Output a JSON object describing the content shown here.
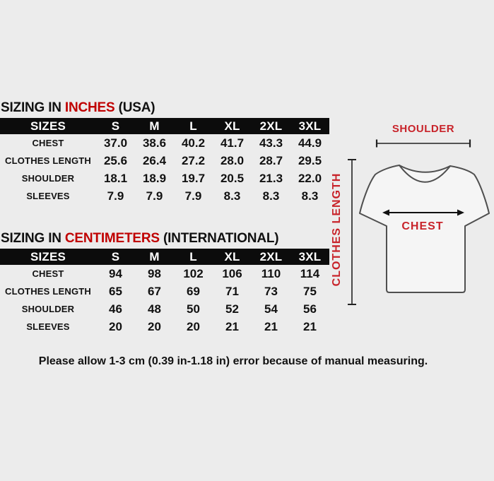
{
  "tables": [
    {
      "title": {
        "prefix": "SIZING IN ",
        "accent": "INCHES",
        "suffix": " (USA)"
      },
      "columns": [
        "SIZES",
        "S",
        "M",
        "L",
        "XL",
        "2XL",
        "3XL"
      ],
      "rows": [
        {
          "label": "CHEST",
          "values": [
            "37.0",
            "38.6",
            "40.2",
            "41.7",
            "43.3",
            "44.9"
          ]
        },
        {
          "label": "CLOTHES LENGTH",
          "values": [
            "25.6",
            "26.4",
            "27.2",
            "28.0",
            "28.7",
            "29.5"
          ]
        },
        {
          "label": "SHOULDER",
          "values": [
            "18.1",
            "18.9",
            "19.7",
            "20.5",
            "21.3",
            "22.0"
          ]
        },
        {
          "label": "SLEEVES",
          "values": [
            "7.9",
            "7.9",
            "7.9",
            "8.3",
            "8.3",
            "8.3"
          ]
        }
      ]
    },
    {
      "title": {
        "prefix": "SIZING IN ",
        "accent": "CENTIMETERS",
        "suffix": " (INTERNATIONAL)"
      },
      "columns": [
        "SIZES",
        "S",
        "M",
        "L",
        "XL",
        "2XL",
        "3XL"
      ],
      "rows": [
        {
          "label": "CHEST",
          "values": [
            "94",
            "98",
            "102",
            "106",
            "110",
            "114"
          ]
        },
        {
          "label": "CLOTHES LENGTH",
          "values": [
            "65",
            "67",
            "69",
            "71",
            "73",
            "75"
          ]
        },
        {
          "label": "SHOULDER",
          "values": [
            "46",
            "48",
            "50",
            "52",
            "54",
            "56"
          ]
        },
        {
          "label": "SLEEVES",
          "values": [
            "20",
            "20",
            "20",
            "21",
            "21",
            "21"
          ]
        }
      ]
    }
  ],
  "diagram": {
    "shoulder_label": "SHOULDER",
    "chest_label": "CHEST",
    "length_label": "CLOTHES LENGTH"
  },
  "footer": {
    "note": "Please allow 1-3 cm (0.39 in-1.18 in) error because of manual measuring."
  },
  "colors": {
    "background": "#ececec",
    "header_bg": "#0c0c0c",
    "header_text": "#ffffff",
    "body_text": "#111111",
    "title_accent_red": "#c00000",
    "diagram_label_red": "#c8232a",
    "shirt_fill": "#f5f5f5",
    "shirt_outline": "#4f4f4f",
    "measure_line": "#222222"
  }
}
